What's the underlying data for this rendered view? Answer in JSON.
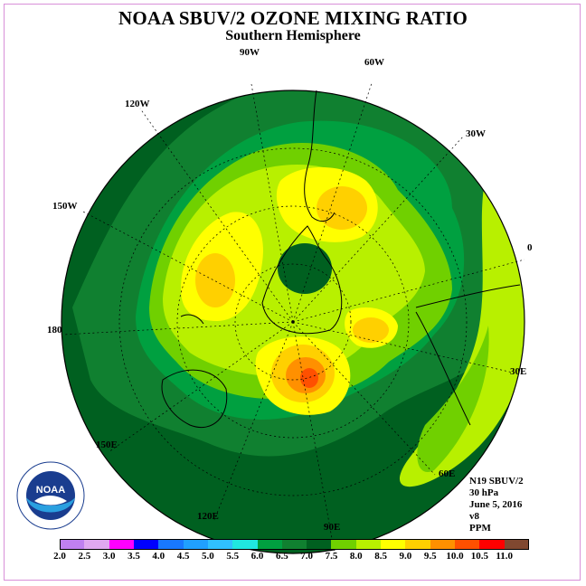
{
  "title": "NOAA SBUV/2 OZONE MIXING RATIO",
  "subtitle": "Southern Hemisphere",
  "longitude_labels": [
    "90W",
    "60W",
    "30W",
    "0",
    "30E",
    "60E",
    "90E",
    "120E",
    "150E",
    "180",
    "150W",
    "120W"
  ],
  "info": {
    "satellite": "N19 SBUV/2",
    "pressure": "30 hPa",
    "date": "June 5, 2016",
    "version": "v8",
    "units": "PPM"
  },
  "logo_text": "NOAA",
  "colorbar": {
    "ticks": [
      "2.0",
      "2.5",
      "3.0",
      "3.5",
      "4.0",
      "4.5",
      "5.0",
      "5.5",
      "6.0",
      "6.5",
      "7.0",
      "7.5",
      "8.0",
      "8.5",
      "9.0",
      "9.5",
      "10.0",
      "10.5",
      "11.0"
    ],
    "colors": [
      "#c080f0",
      "#e0a8f0",
      "#ff00ff",
      "#0000ff",
      "#1878ff",
      "#20a0ff",
      "#30c0ff",
      "#20e8e0",
      "#00a040",
      "#108030",
      "#006020",
      "#70d000",
      "#b8f000",
      "#ffff00",
      "#ffd000",
      "#ff9000",
      "#ff5000",
      "#ff0000",
      "#804830"
    ]
  }
}
